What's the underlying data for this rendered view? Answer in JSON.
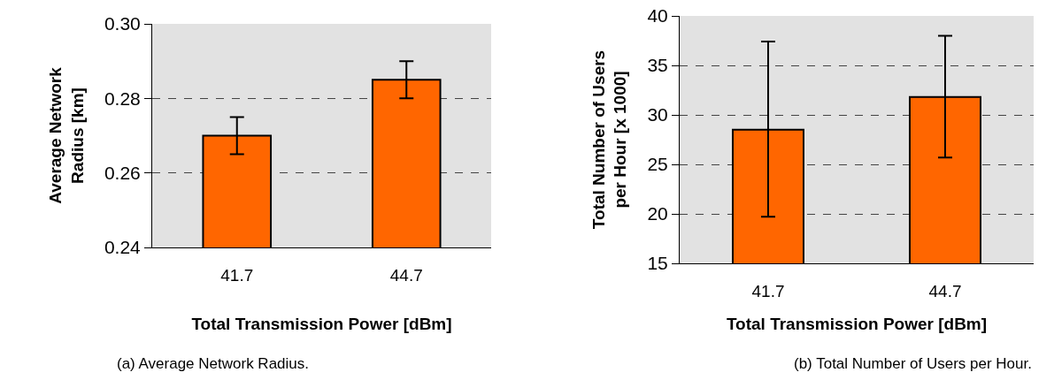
{
  "chart_data": [
    {
      "type": "bar",
      "categories": [
        "41.7",
        "44.7"
      ],
      "values": [
        0.27,
        0.285
      ],
      "errors": [
        [
          0.265,
          0.275
        ],
        [
          0.28,
          0.29
        ]
      ],
      "color": "#ff6600",
      "xlabel": "Total Transmission Power [dBm]",
      "ylabel": "Average Network Radius [km]",
      "ylim": [
        0.24,
        0.3
      ],
      "yticks": [
        {
          "value": 0.24,
          "label": "0.24"
        },
        {
          "value": 0.26,
          "label": "0.26"
        },
        {
          "value": 0.28,
          "label": "0.28"
        },
        {
          "value": 0.3,
          "label": "0.30"
        }
      ],
      "grid": "y",
      "line_style": "dashed",
      "annotations": [
        "(a) Average Network Radius."
      ]
    },
    {
      "type": "bar",
      "categories": [
        "41.7",
        "44.7"
      ],
      "values": [
        28.5,
        31.8
      ],
      "errors": [
        [
          19.7,
          37.4
        ],
        [
          25.7,
          38.0
        ]
      ],
      "color": "#ff6600",
      "xlabel": "Total Transmission Power [dBm]",
      "ylabel": "Total Number of Users per Hour [x 1000]",
      "ylim": [
        15,
        40
      ],
      "yticks": [
        15,
        20,
        25,
        30,
        35,
        40
      ],
      "grid": "y",
      "line_style": "dashed",
      "annotations": [
        "(b) Total Number of Users per Hour."
      ]
    }
  ]
}
